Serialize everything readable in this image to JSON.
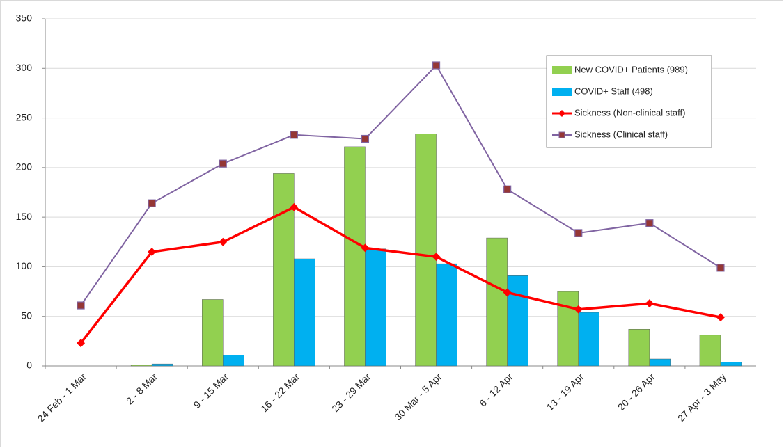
{
  "chart_data": {
    "type": "combo",
    "categories": [
      "24 Feb - 1 Mar",
      "2 - 8 Mar",
      "9 - 15 Mar",
      "16 - 22 Mar",
      "23 - 29 Mar",
      "30 Mar - 5 Apr",
      "6 - 12 Apr",
      "13 - 19 Apr",
      "20 - 26 Apr",
      "27 Apr - 3 May"
    ],
    "series": [
      {
        "name": "New COVID+ Patients (989)",
        "type": "bar",
        "color": "#92d050",
        "values": [
          0,
          1,
          67,
          194,
          221,
          234,
          129,
          75,
          37,
          31
        ]
      },
      {
        "name": "COVID+ Staff (498)",
        "type": "bar",
        "color": "#00b0f0",
        "values": [
          0,
          2,
          11,
          108,
          118,
          103,
          91,
          54,
          7,
          4
        ]
      },
      {
        "name": "Sickness (Non-clinical staff)",
        "type": "line",
        "marker": "diamond",
        "color": "#ff0000",
        "values": [
          23,
          115,
          125,
          160,
          119,
          110,
          74,
          57,
          63,
          49
        ]
      },
      {
        "name": "Sickness (Clinical staff)",
        "type": "line",
        "marker": "square",
        "color": "#8064a2",
        "values": [
          61,
          164,
          204,
          233,
          229,
          303,
          178,
          134,
          144,
          99
        ]
      }
    ],
    "ylim": [
      0,
      350
    ],
    "yticks": [
      0,
      50,
      100,
      150,
      200,
      250,
      300,
      350
    ],
    "grid": true,
    "legend": "upper right"
  }
}
